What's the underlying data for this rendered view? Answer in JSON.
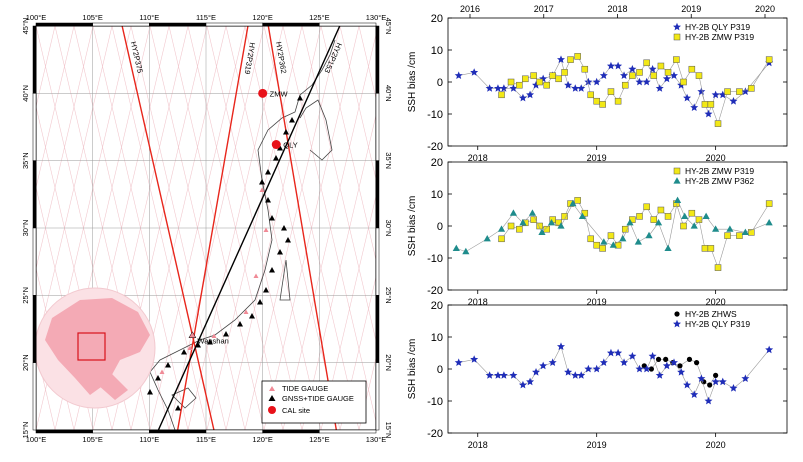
{
  "map": {
    "lon_ticks": [
      "100°E",
      "105°E",
      "110°E",
      "115°E",
      "120°E",
      "125°E",
      "130°E"
    ],
    "lon_values": [
      100,
      105,
      110,
      115,
      120,
      125,
      130
    ],
    "lat_ticks": [
      "45°N",
      "40°N",
      "35°N",
      "30°N",
      "25°N",
      "20°N",
      "15°N"
    ],
    "lat_values": [
      45,
      40,
      35,
      30,
      25,
      20,
      15
    ],
    "extent": {
      "lon": [
        100,
        130
      ],
      "lat": [
        15,
        45
      ]
    },
    "tracks": [
      {
        "label": "HY2P375",
        "color": "#e8261c",
        "from": [
          107.6,
          45
        ],
        "to": [
          115.7,
          15
        ]
      },
      {
        "label": "HY2P319",
        "color": "#e8261c",
        "from": [
          118.7,
          45
        ],
        "to": [
          112.5,
          15
        ]
      },
      {
        "label": "HY2P362",
        "color": "#e8261c",
        "from": [
          120.5,
          45
        ],
        "to": [
          126.5,
          15
        ]
      },
      {
        "label": "HY2P153",
        "color": "#000000",
        "from": [
          126.8,
          45
        ],
        "to": [
          110.8,
          15
        ]
      }
    ],
    "sites": [
      {
        "label": "ZMW",
        "lon": 120.0,
        "lat": 40.0
      },
      {
        "label": "QLY",
        "lon": 121.2,
        "lat": 36.2
      },
      {
        "label": "Wanshan",
        "lon": 113.8,
        "lat": 22.0
      }
    ],
    "legend": [
      "TIDE GAUGE",
      "GNSS+TIDE GAUGE",
      "CAL site"
    ],
    "colors": {
      "land_inset": "#f7c6ce",
      "track_grid": "#f2c9cf",
      "accent": "#e8261c"
    }
  },
  "chart_data": [
    {
      "type": "scatter",
      "ylabel": "SSH bias /cm",
      "ylim": [
        -20,
        20
      ],
      "yticks": [
        -20,
        -10,
        0,
        10,
        20
      ],
      "xlim": [
        2017.75,
        2020.6
      ],
      "top_ticks": [
        "2016",
        "2017",
        "2018",
        "2019",
        "2020"
      ],
      "top_tick_values": [
        2016.3,
        2017.0,
        2018.0,
        2019.0,
        2020.0
      ],
      "bottom_ticks": [
        "2018",
        "2019",
        "2020"
      ],
      "bottom_tick_values": [
        2018.0,
        2019.0,
        2020.0
      ],
      "legend_position": "top-right",
      "series": [
        {
          "name": "HY-2B QLY P319",
          "marker": "star",
          "color": "#1f2db8",
          "x": [
            2017.84,
            2017.97,
            2018.1,
            2018.17,
            2018.22,
            2018.3,
            2018.38,
            2018.44,
            2018.49,
            2018.55,
            2018.63,
            2018.7,
            2018.76,
            2018.82,
            2018.87,
            2018.93,
            2019.0,
            2019.06,
            2019.12,
            2019.18,
            2019.23,
            2019.3,
            2019.36,
            2019.42,
            2019.47,
            2019.53,
            2019.59,
            2019.65,
            2019.71,
            2019.76,
            2019.82,
            2019.88,
            2019.94,
            2020.0,
            2020.06,
            2020.15,
            2020.25,
            2020.45
          ],
          "y": [
            2,
            3,
            -2,
            -2,
            -2,
            -2,
            -5,
            -4,
            -1,
            1,
            2,
            7,
            -1,
            -2,
            -2,
            0,
            0,
            2,
            5,
            5,
            2,
            4,
            0,
            0,
            4,
            -2,
            1,
            2,
            -1,
            -5,
            -8,
            -3,
            -10,
            -4,
            -4,
            -6,
            -3,
            6
          ]
        },
        {
          "name": "HY-2B ZMW P319",
          "marker": "square",
          "color": "#f2e816",
          "x": [
            2018.2,
            2018.28,
            2018.35,
            2018.4,
            2018.47,
            2018.52,
            2018.58,
            2018.63,
            2018.68,
            2018.73,
            2018.78,
            2018.84,
            2018.9,
            2018.95,
            2019.0,
            2019.05,
            2019.12,
            2019.18,
            2019.24,
            2019.3,
            2019.36,
            2019.42,
            2019.48,
            2019.54,
            2019.6,
            2019.67,
            2019.73,
            2019.8,
            2019.86,
            2019.91,
            2019.96,
            2020.02,
            2020.1,
            2020.2,
            2020.3,
            2020.45
          ],
          "y": [
            -4,
            0,
            -1,
            1,
            2,
            0,
            -1,
            2,
            1,
            3,
            7,
            8,
            4,
            -4,
            -6,
            -7,
            -3,
            -6,
            -1,
            2,
            3,
            6,
            2,
            5,
            3,
            7,
            0,
            4,
            2,
            -7,
            -7,
            -13,
            -3,
            -3,
            -2,
            7
          ]
        }
      ]
    },
    {
      "type": "scatter",
      "ylabel": "SSH bias /cm",
      "ylim": [
        -20,
        20
      ],
      "yticks": [
        -20,
        -10,
        0,
        10,
        20
      ],
      "xlim": [
        2017.75,
        2020.6
      ],
      "bottom_ticks": [
        "2018",
        "2019",
        "2020"
      ],
      "bottom_tick_values": [
        2018.0,
        2019.0,
        2020.0
      ],
      "legend_position": "top-right",
      "series": [
        {
          "name": "HY-2B ZMW P319",
          "marker": "square",
          "color": "#f2e816",
          "x": [
            2018.2,
            2018.28,
            2018.35,
            2018.4,
            2018.47,
            2018.52,
            2018.58,
            2018.63,
            2018.68,
            2018.73,
            2018.78,
            2018.84,
            2018.9,
            2018.95,
            2019.0,
            2019.05,
            2019.12,
            2019.18,
            2019.24,
            2019.3,
            2019.36,
            2019.42,
            2019.48,
            2019.54,
            2019.6,
            2019.67,
            2019.73,
            2019.8,
            2019.86,
            2019.91,
            2019.96,
            2020.02,
            2020.1,
            2020.2,
            2020.3,
            2020.45
          ],
          "y": [
            -4,
            0,
            -1,
            1,
            2,
            0,
            -1,
            2,
            1,
            3,
            7,
            8,
            4,
            -4,
            -6,
            -7,
            -3,
            -6,
            -1,
            2,
            3,
            6,
            2,
            5,
            3,
            7,
            0,
            4,
            2,
            -7,
            -7,
            -13,
            -3,
            -3,
            -2,
            7
          ]
        },
        {
          "name": "HY-2B ZMW P362",
          "marker": "triangle",
          "color": "#1f8c8c",
          "x": [
            2017.82,
            2017.9,
            2018.08,
            2018.2,
            2018.3,
            2018.38,
            2018.46,
            2018.54,
            2018.62,
            2018.7,
            2018.8,
            2018.88,
            2019.06,
            2019.14,
            2019.22,
            2019.28,
            2019.35,
            2019.44,
            2019.52,
            2019.6,
            2019.68,
            2019.74,
            2019.82,
            2019.92,
            2020.0,
            2020.12,
            2020.25,
            2020.45
          ],
          "y": [
            -7,
            -8,
            -4,
            -1,
            4,
            1,
            4,
            -2,
            1,
            0,
            7,
            3,
            -5,
            -6,
            -4,
            1,
            -5,
            -3,
            1,
            -7,
            8,
            3,
            0,
            3,
            -1,
            -1,
            -2,
            1
          ]
        }
      ]
    },
    {
      "type": "scatter",
      "ylabel": "SSH bias /cm",
      "ylim": [
        -20,
        20
      ],
      "yticks": [
        -20,
        -10,
        0,
        10,
        20
      ],
      "xlim": [
        2017.75,
        2020.6
      ],
      "bottom_ticks": [
        "2018",
        "2019",
        "2020"
      ],
      "bottom_tick_values": [
        2018.0,
        2019.0,
        2020.0
      ],
      "legend_position": "top-right",
      "series": [
        {
          "name": "HY-2B ZHWS",
          "marker": "circle",
          "color": "#000000",
          "x": [
            2019.4,
            2019.46,
            2019.52,
            2019.58,
            2019.64,
            2019.7,
            2019.78,
            2019.84,
            2019.9,
            2019.95,
            2020.0
          ],
          "y": [
            1,
            0,
            3,
            3,
            2,
            1,
            3,
            2,
            -4,
            -5,
            -2
          ]
        },
        {
          "name": "HY-2B QLY P319",
          "marker": "star",
          "color": "#1f2db8",
          "x": [
            2017.84,
            2017.97,
            2018.1,
            2018.17,
            2018.22,
            2018.3,
            2018.38,
            2018.44,
            2018.49,
            2018.55,
            2018.63,
            2018.7,
            2018.76,
            2018.82,
            2018.87,
            2018.93,
            2019.0,
            2019.06,
            2019.12,
            2019.18,
            2019.23,
            2019.3,
            2019.36,
            2019.42,
            2019.47,
            2019.53,
            2019.59,
            2019.65,
            2019.71,
            2019.76,
            2019.82,
            2019.88,
            2019.94,
            2020.0,
            2020.06,
            2020.15,
            2020.25,
            2020.45
          ],
          "y": [
            2,
            3,
            -2,
            -2,
            -2,
            -2,
            -5,
            -4,
            -1,
            1,
            2,
            7,
            -1,
            -2,
            -2,
            0,
            0,
            2,
            5,
            5,
            2,
            4,
            0,
            0,
            4,
            -2,
            1,
            2,
            -1,
            -5,
            -8,
            -3,
            -10,
            -4,
            -4,
            -6,
            -3,
            6
          ]
        }
      ]
    }
  ]
}
